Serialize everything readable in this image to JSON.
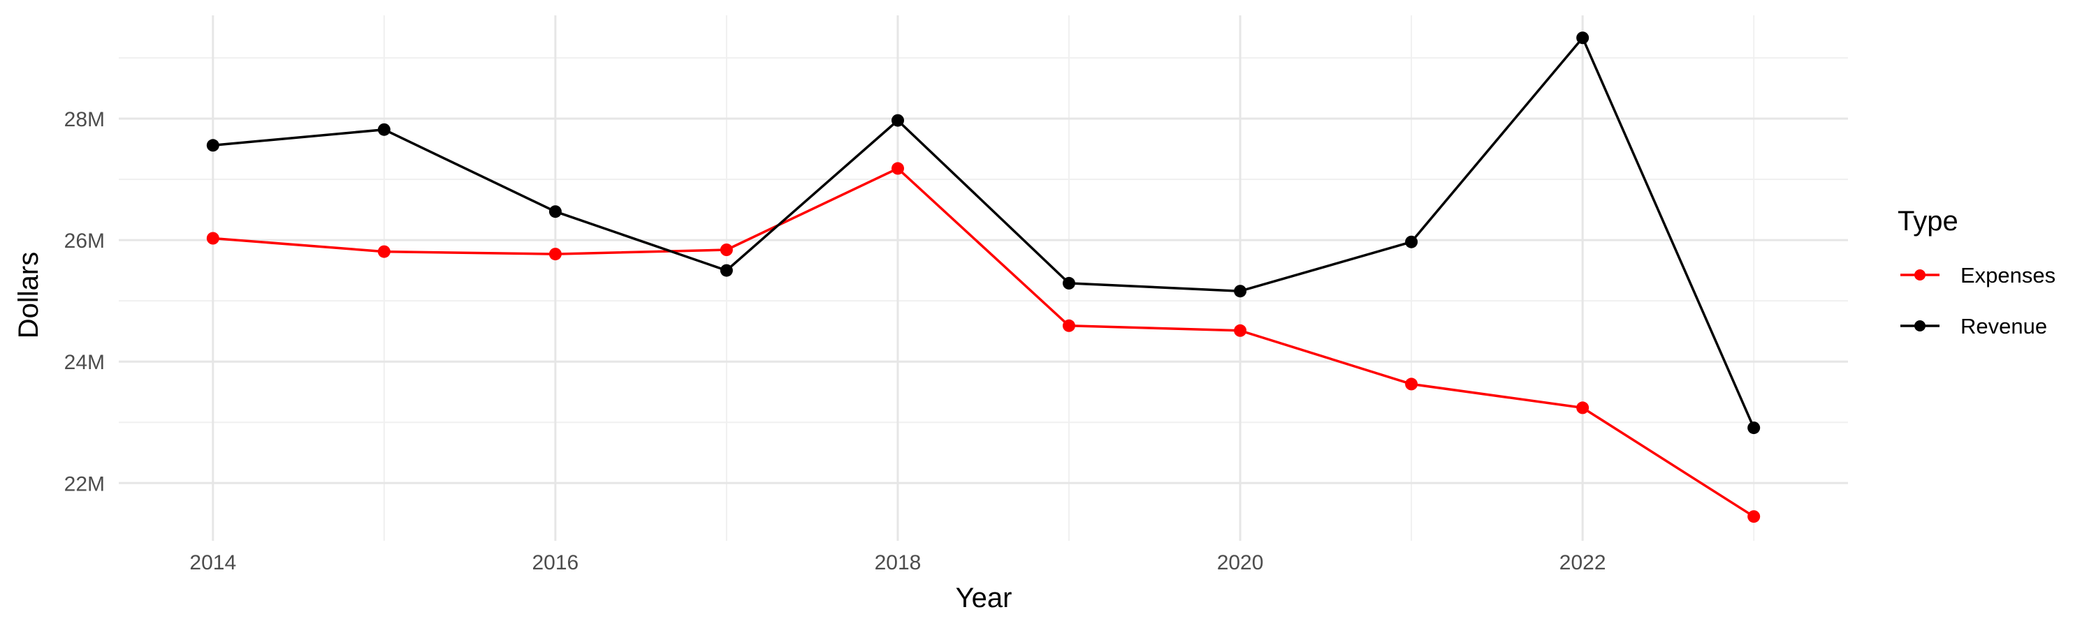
{
  "chart_data": {
    "type": "line",
    "xlabel": "Year",
    "ylabel": "Dollars",
    "x": [
      2014,
      2015,
      2016,
      2017,
      2018,
      2019,
      2020,
      2021,
      2022,
      2023
    ],
    "x_ticks": [
      2014,
      2016,
      2018,
      2020,
      2022
    ],
    "x_tick_labels": [
      "2014",
      "2016",
      "2018",
      "2020",
      "2022"
    ],
    "xlim": [
      2013.45,
      2023.55
    ],
    "y_ticks": [
      22000000,
      24000000,
      26000000,
      28000000
    ],
    "y_tick_labels": [
      "22M",
      "24M",
      "26M",
      "28M"
    ],
    "ylim": [
      21050000,
      29700000
    ],
    "grid": true,
    "legend": {
      "title": "Type",
      "position": "right"
    },
    "series": [
      {
        "name": "Expenses",
        "color": "#ff0000",
        "values": [
          26030000,
          25810000,
          25770000,
          25840000,
          27180000,
          24590000,
          24510000,
          23630000,
          23240000,
          21450000
        ]
      },
      {
        "name": "Revenue",
        "color": "#000000",
        "values": [
          27560000,
          27820000,
          26470000,
          25500000,
          27970000,
          25290000,
          25160000,
          25970000,
          29330000,
          22910000
        ]
      }
    ]
  }
}
